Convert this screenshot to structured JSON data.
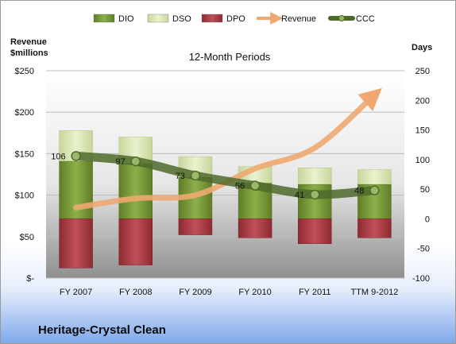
{
  "chart_data": {
    "type": "bar",
    "title": "12-Month Periods",
    "company": "Heritage-Crystal Clean",
    "left_axis": {
      "label_lines": [
        "Revenue",
        "$millions"
      ],
      "range": [
        0,
        250
      ],
      "ticks": [
        0,
        50,
        100,
        150,
        200,
        250
      ],
      "tick_labels": [
        "$-",
        "$50",
        "$100",
        "$150",
        "$200",
        "$250"
      ]
    },
    "right_axis": {
      "label": "Days",
      "range": [
        -100,
        250
      ],
      "ticks": [
        -100,
        -50,
        0,
        50,
        100,
        150,
        200,
        250
      ],
      "tick_labels": [
        "-100",
        "-50",
        "0",
        "50",
        "100",
        "150",
        "200",
        "250"
      ]
    },
    "categories": [
      "FY 2007",
      "FY 2008",
      "FY 2009",
      "FY 2010",
      "FY 2011",
      "TTM 9-2012"
    ],
    "series": [
      {
        "name": "DIO",
        "axis": "right",
        "values": [
          97,
          93,
          70,
          60,
          58,
          58
        ],
        "color": "#7a9a3a"
      },
      {
        "name": "DSO",
        "axis": "right",
        "values": [
          52,
          45,
          35,
          28,
          28,
          25
        ],
        "color": "#d8e6b0"
      },
      {
        "name": "DPO",
        "axis": "right",
        "values": [
          -83,
          -78,
          -27,
          -32,
          -42,
          -32
        ],
        "color": "#a8343c"
      },
      {
        "name": "Revenue",
        "axis": "left",
        "values": [
          85,
          96,
          100,
          132,
          157,
          221
        ],
        "color": "#f0a870"
      },
      {
        "name": "CCC",
        "axis": "right",
        "values": [
          106,
          97,
          73,
          56,
          41,
          48
        ],
        "color": "#4e6a2a"
      }
    ],
    "data_labels": [
      "106",
      "97",
      "73",
      "56",
      "41",
      "48"
    ],
    "legend": [
      "DIO",
      "DSO",
      "DPO",
      "Revenue",
      "CCC"
    ],
    "legend_position": "top"
  }
}
